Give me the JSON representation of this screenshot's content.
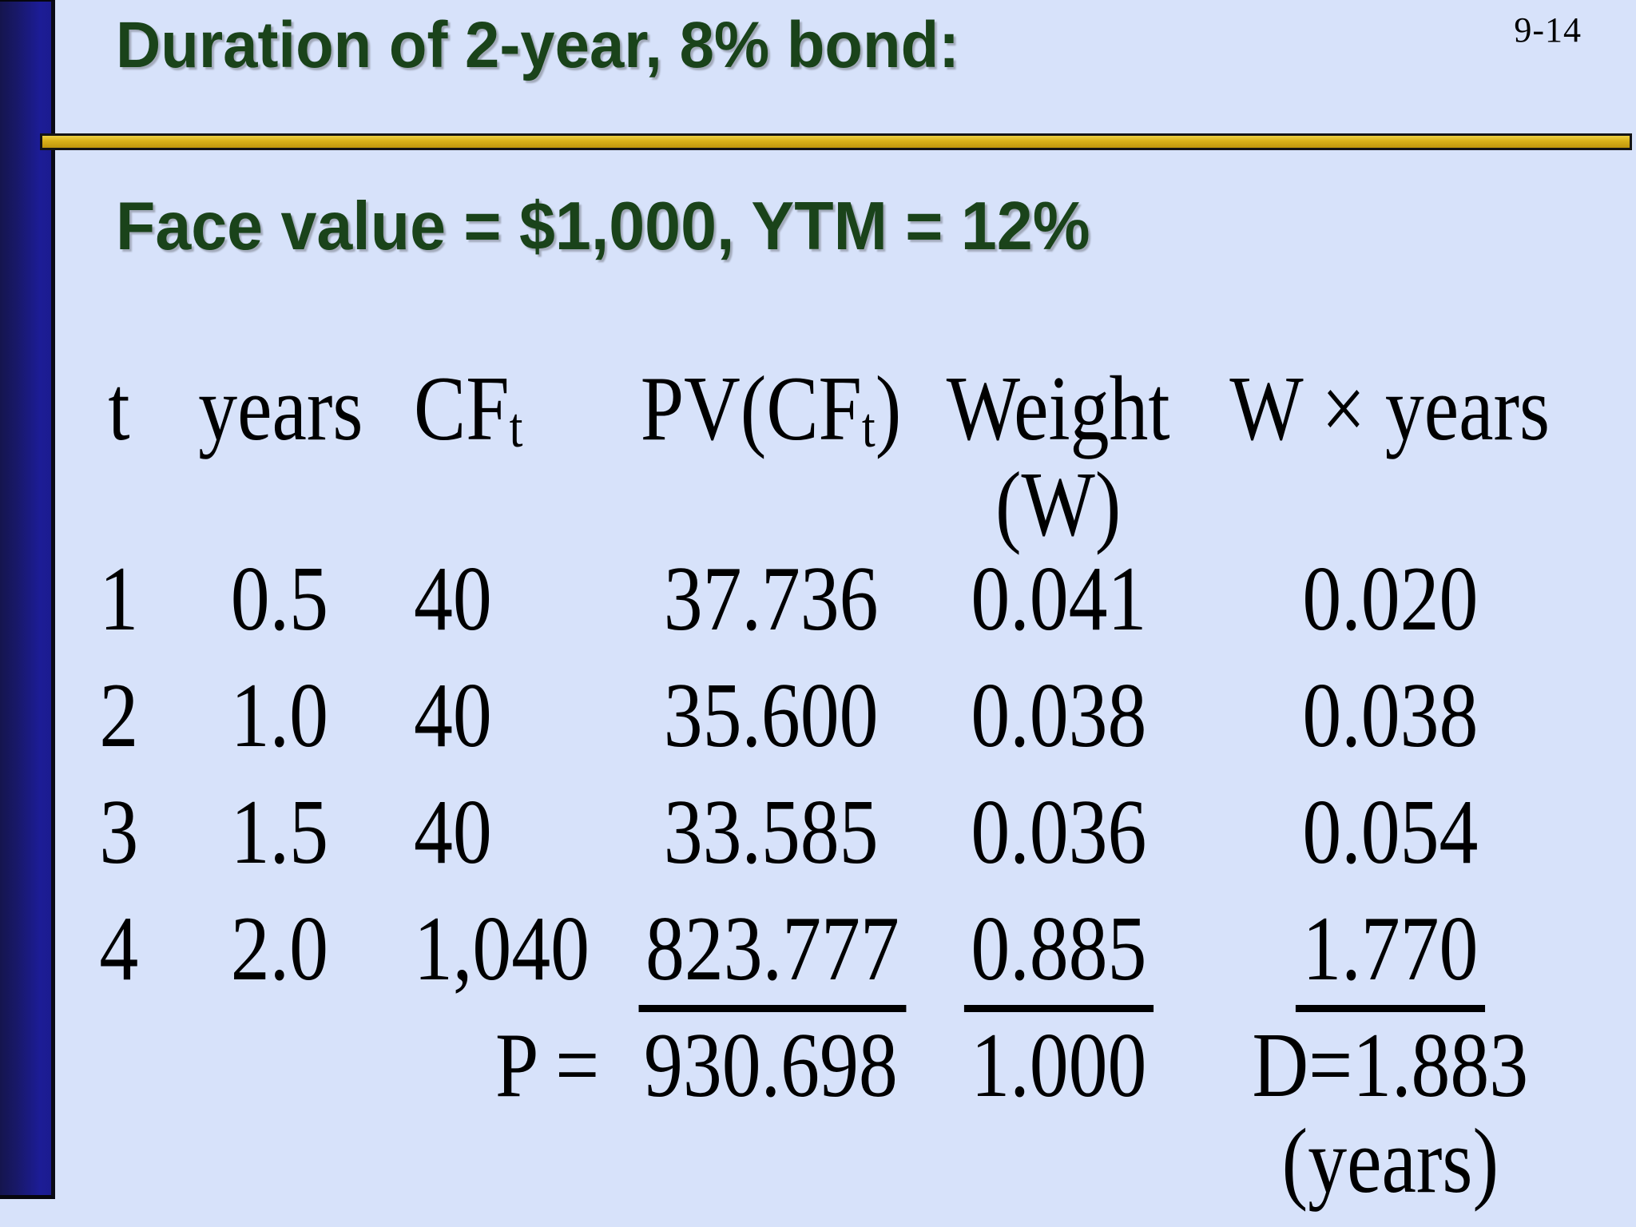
{
  "slide": {
    "page_number": "9-14",
    "title": "Duration of 2-year, 8% bond:",
    "subtitle": "Face value = $1,000, YTM = 12%",
    "colors": {
      "background": "#d7e2fa",
      "accent_bar_navy": "#1c1c96",
      "divider_gold": "#d4a817",
      "heading_green": "#1a431a",
      "table_text": "#000000"
    }
  },
  "table": {
    "headers": [
      {
        "pre": "t"
      },
      {
        "pre": "years"
      },
      {
        "pre": "CF",
        "sub": "t"
      },
      {
        "pre": "PV(CF",
        "sub": "t",
        "post": ")"
      },
      {
        "pre": "Weight",
        "line2": "(W)"
      },
      {
        "pre": "W × years"
      }
    ],
    "rows": [
      [
        "1",
        "0.5",
        "40",
        "37.736",
        "0.041",
        "0.020"
      ],
      [
        "2",
        "1.0",
        "40",
        "35.600",
        "0.038",
        "0.038"
      ],
      [
        "3",
        "1.5",
        "40",
        "33.585",
        "0.036",
        "0.054"
      ],
      [
        "4",
        "2.0",
        "1,040",
        "823.777",
        "0.885",
        "1.770"
      ]
    ],
    "totals": {
      "price_label": "P =",
      "price": "930.698",
      "weight_total": "1.000",
      "duration": "D=1.883",
      "duration_unit": "(years)"
    }
  }
}
